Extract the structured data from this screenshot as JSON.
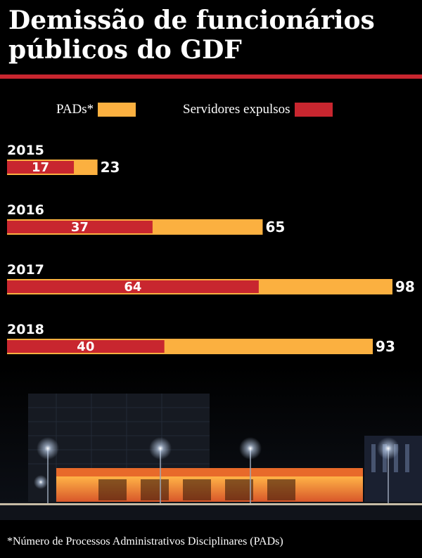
{
  "title": "Demissão de funcionários públicos do GDF",
  "legend": [
    {
      "label": "PADs*",
      "color": "#fbb040"
    },
    {
      "label": "Servidores expulsos",
      "color": "#c8262f"
    }
  ],
  "chart_data": {
    "type": "bar",
    "orientation": "horizontal",
    "categories": [
      "2015",
      "2016",
      "2017",
      "2018"
    ],
    "series": [
      {
        "name": "PADs*",
        "color": "#fbb040",
        "values": [
          23,
          65,
          98,
          93
        ]
      },
      {
        "name": "Servidores expulsos",
        "color": "#c8262f",
        "values": [
          17,
          37,
          64,
          40
        ]
      }
    ],
    "xlim": [
      0,
      98
    ],
    "grid": false,
    "legend_position": "top"
  },
  "footnote": "*Número de Processos Administrativos Disciplinares (PADs)"
}
